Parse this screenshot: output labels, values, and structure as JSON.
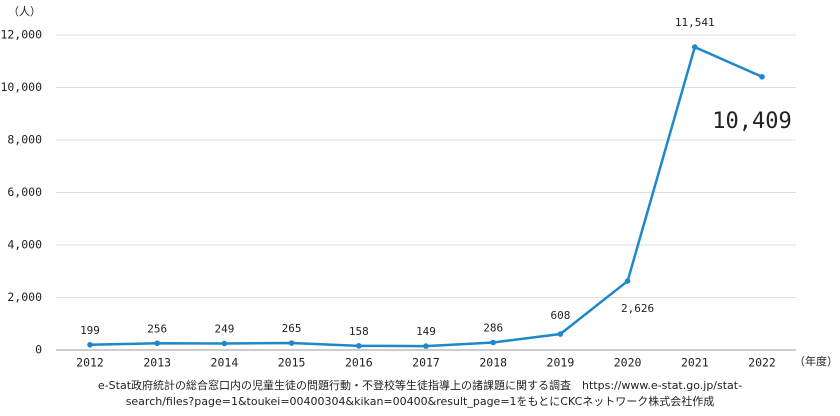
{
  "chart_data": {
    "type": "line",
    "y_unit": "（人）",
    "x_unit": "（年度）",
    "source_lines": [
      "e-Stat政府統計の総合窓口内の児童生徒の問題行動・不登校等生徒指導上の諸課題に関する調査　https://www.e-stat.go.jp/stat-",
      "search/files?page=1&toukei=00400304&kikan=00400&result_page=1をもとにCKCネットワーク株式会社作成"
    ],
    "categories": [
      "2012",
      "2013",
      "2014",
      "2015",
      "2016",
      "2017",
      "2018",
      "2019",
      "2020",
      "2021",
      "2022"
    ],
    "series": [
      {
        "color": "#1f88c8",
        "values": [
          199,
          256,
          249,
          265,
          158,
          149,
          286,
          608,
          2626,
          11541,
          10409
        ],
        "value_labels": [
          "199",
          "256",
          "249",
          "265",
          "158",
          "149",
          "286",
          "608",
          "2,626",
          "11,541",
          "10,409"
        ]
      }
    ],
    "ylim": [
      0,
      12000
    ],
    "yticks": [
      0,
      {
        "value": 2000,
        "label": "2,000"
      },
      {
        "value": 4000,
        "label": "4,000"
      },
      {
        "value": 6000,
        "label": "6,000"
      },
      {
        "value": 8000,
        "label": "8,000"
      },
      {
        "value": 10000,
        "label": "10,000"
      },
      {
        "value": 12000,
        "label": "12,000"
      }
    ],
    "grid": true
  }
}
